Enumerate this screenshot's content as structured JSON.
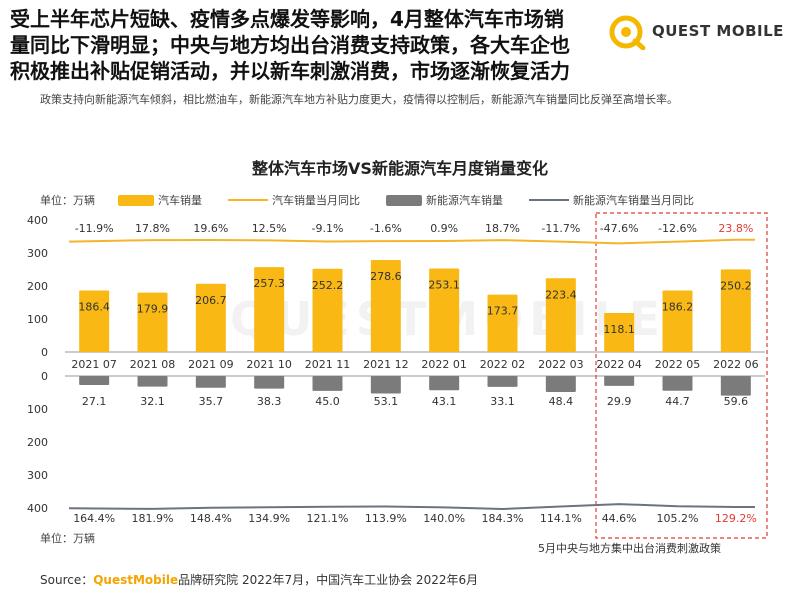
{
  "headline": [
    "受上半年芯片短缺、疫情多点爆发等影响，4月整体汽车市场销",
    "量同比下滑明显；中央与地方均出台消费支持政策，各大车企也",
    "积极推出补贴促销活动，并以新车刺激消费，市场逐渐恢复活力"
  ],
  "logo_text": "QUEST MOBILE",
  "subtitle": "政策支持向新能源汽车倾斜，相比燃油车，新能源汽车地方补贴力度更大，疫情得以控制后，新能源汽车销量同比反弹至高增长率。",
  "watermark": "QUESTMOBILE",
  "chart_data": {
    "type": "bar",
    "title": "整体汽车市场VS新能源汽车月度销量变化",
    "unit": "单位：万辆",
    "unit_bottom": "单位：万辆",
    "categories": [
      "2021 07",
      "2021 08",
      "2021 09",
      "2021 10",
      "2021 11",
      "2021 12",
      "2022 01",
      "2022 02",
      "2022 03",
      "2022 04",
      "2022 05",
      "2022 06"
    ],
    "series": [
      {
        "name": "汽车销量",
        "values": [
          186.4,
          179.9,
          206.7,
          257.3,
          252.2,
          278.6,
          253.1,
          173.7,
          223.4,
          118.1,
          186.2,
          250.2
        ]
      },
      {
        "name": "汽车销量当月同比",
        "labels": [
          "-11.9%",
          "17.8%",
          "19.6%",
          "12.5%",
          "-9.1%",
          "-1.6%",
          "0.9%",
          "18.7%",
          "-11.7%",
          "-47.6%",
          "-12.6%",
          "23.8%"
        ]
      },
      {
        "name": "新能源汽车销量",
        "values": [
          27.1,
          32.1,
          35.7,
          38.3,
          45.0,
          53.1,
          43.1,
          33.1,
          48.4,
          29.9,
          44.7,
          59.6
        ]
      },
      {
        "name": "新能源汽车销量当月同比",
        "labels": [
          "164.4%",
          "181.9%",
          "148.4%",
          "134.9%",
          "121.1%",
          "113.9%",
          "140.0%",
          "184.3%",
          "114.1%",
          "44.6%",
          "105.2%",
          "129.2%"
        ]
      }
    ],
    "value_labels_top": [
      "186.4",
      "179.9",
      "206.7",
      "257.3",
      "252.2",
      "278.6",
      "253.1",
      "173.7",
      "223.4",
      "118.1",
      "186.2",
      "250.2"
    ],
    "value_labels_bottom": [
      "27.1",
      "32.1",
      "35.7",
      "38.3",
      "45.0",
      "53.1",
      "43.1",
      "33.1",
      "48.4",
      "29.9",
      "44.7",
      "59.6"
    ],
    "yticks_top": [
      "400",
      "300",
      "200",
      "100",
      "0"
    ],
    "yticks_bottom": [
      "0",
      "100",
      "200",
      "300",
      "400"
    ],
    "ylim_top": [
      0,
      400
    ],
    "ylim_bottom": [
      0,
      400
    ],
    "highlight_from": 9,
    "highlight_note": "5月中央与地方集中出台消费刺激政策"
  },
  "colors": {
    "bar_top": "#f9b814",
    "line_top": "#f5b52a",
    "bar_bottom": "#7b7b7b",
    "line_bottom": "#6b7280",
    "highlight": "#e03c31",
    "axis": "#999999"
  },
  "source": {
    "prefix": "Source：",
    "brand": "QuestMobile",
    "rest": "品牌研究院 2022年7月，中国汽车工业协会 2022年6月"
  }
}
